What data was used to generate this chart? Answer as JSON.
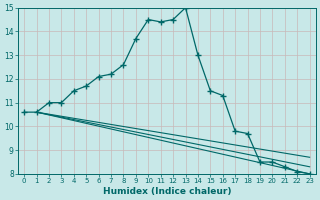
{
  "xlabel": "Humidex (Indice chaleur)",
  "background_color": "#c8e8e8",
  "grid_color": "#c8b8b8",
  "line_color": "#006868",
  "xlim": [
    -0.5,
    23.5
  ],
  "ylim": [
    8,
    15
  ],
  "x_ticks": [
    0,
    1,
    2,
    3,
    4,
    5,
    6,
    7,
    8,
    9,
    10,
    11,
    12,
    13,
    14,
    15,
    16,
    17,
    18,
    19,
    20,
    21,
    22,
    23
  ],
  "y_ticks": [
    8,
    9,
    10,
    11,
    12,
    13,
    14,
    15
  ],
  "main_series": {
    "x": [
      0,
      1,
      2,
      3,
      4,
      5,
      6,
      7,
      8,
      9,
      10,
      11,
      12,
      13,
      14,
      15,
      16,
      17,
      18,
      19,
      20,
      21,
      22,
      23
    ],
    "y": [
      10.6,
      10.6,
      11.0,
      11.0,
      11.5,
      11.7,
      12.1,
      12.2,
      12.6,
      13.7,
      14.5,
      14.4,
      14.5,
      15.0,
      13.0,
      11.5,
      11.3,
      9.8,
      9.7,
      8.5,
      8.5,
      8.3,
      8.1,
      8.0
    ]
  },
  "straight_lines": [
    {
      "x": [
        1,
        23
      ],
      "y": [
        10.6,
        8.0
      ]
    },
    {
      "x": [
        1,
        23
      ],
      "y": [
        10.6,
        8.3
      ]
    },
    {
      "x": [
        1,
        23
      ],
      "y": [
        10.6,
        8.7
      ]
    }
  ]
}
